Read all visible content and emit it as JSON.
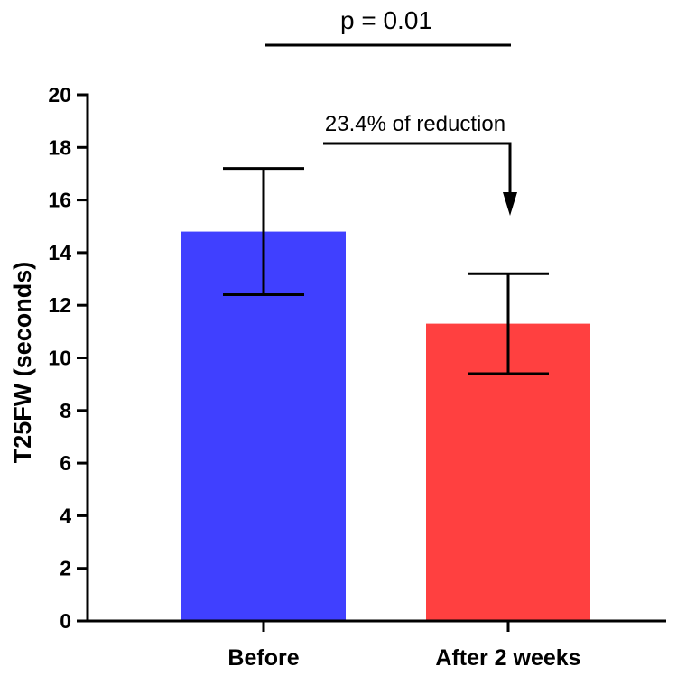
{
  "chart_data": {
    "type": "bar",
    "title": "",
    "xlabel": "",
    "ylabel": "T25FW (seconds)",
    "ylim": [
      0,
      20
    ],
    "yticks": [
      0,
      2,
      4,
      6,
      8,
      10,
      12,
      14,
      16,
      18,
      20
    ],
    "tick_labels": [
      "0",
      "2",
      "4",
      "6",
      "8",
      "10",
      "12",
      "14",
      "16",
      "18",
      "20"
    ],
    "categories": [
      "Before",
      "After 2 weeks"
    ],
    "values": [
      14.8,
      11.3
    ],
    "error_low": [
      12.4,
      9.4
    ],
    "error_high": [
      17.2,
      13.2
    ],
    "colors": [
      "#4040ff",
      "#ff4040"
    ],
    "annotations": {
      "significance": "p = 0.01",
      "reduction": "23.4% of reduction"
    }
  }
}
